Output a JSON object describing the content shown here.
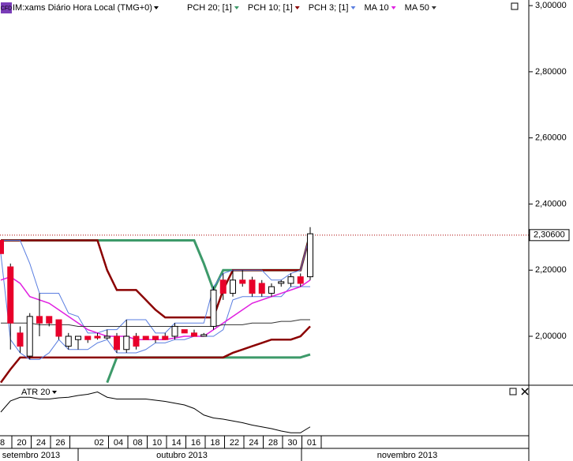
{
  "chart_data": [
    {
      "type": "candlestick",
      "title": "IM:xams Diário Hora Local (TMG+0)",
      "badge": "CFD",
      "categories": [
        "8",
        null,
        "20",
        null,
        "24",
        null,
        "26",
        null,
        null,
        null,
        "02",
        null,
        "04",
        null,
        "08",
        null,
        "10",
        null,
        "14",
        null,
        "16",
        null,
        "18",
        null,
        "22",
        null,
        "24",
        null,
        "28",
        null,
        "30",
        null,
        "01"
      ],
      "months": [
        "setembro 2013",
        "outubro 2013",
        "novembro 2013"
      ],
      "open": [
        2.29,
        2.21,
        2.01,
        1.94,
        2.06,
        2.06,
        2.05,
        1.97,
        1.99,
        2.0,
        2.0,
        1.995,
        2.0,
        1.96,
        2.0,
        2.0,
        2.0,
        2.0,
        2.0,
        2.02,
        2.01,
        2.0,
        2.03,
        2.17,
        2.13,
        2.17,
        2.17,
        2.16,
        2.13,
        2.16,
        2.16,
        2.18,
        2.18
      ],
      "high": [
        2.29,
        2.22,
        2.03,
        2.07,
        2.13,
        2.06,
        2.05,
        2.01,
        2.0,
        2.0,
        2.01,
        2.02,
        2.01,
        2.05,
        2.01,
        2.0,
        2.0,
        2.01,
        2.04,
        2.02,
        2.02,
        2.01,
        2.15,
        2.19,
        2.2,
        2.2,
        2.18,
        2.17,
        2.16,
        2.17,
        2.19,
        2.19,
        2.33
      ],
      "low": [
        2.25,
        1.96,
        1.95,
        1.93,
        2.0,
        2.03,
        1.99,
        1.96,
        1.96,
        1.98,
        1.99,
        1.99,
        1.95,
        1.95,
        1.96,
        1.99,
        1.98,
        1.99,
        1.99,
        2.01,
        2.0,
        2.0,
        2.02,
        2.11,
        2.12,
        2.15,
        2.12,
        2.12,
        2.12,
        2.15,
        2.15,
        2.15,
        2.17
      ],
      "close": [
        2.25,
        2.04,
        1.97,
        2.06,
        2.04,
        2.04,
        2.0,
        2.0,
        2.0,
        1.99,
        1.995,
        2.0,
        1.96,
        2.0,
        1.97,
        1.99,
        1.99,
        1.99,
        2.03,
        2.01,
        2.0,
        2.005,
        2.14,
        2.13,
        2.17,
        2.16,
        2.13,
        2.13,
        2.15,
        2.165,
        2.18,
        2.16,
        2.31
      ],
      "up_color": "#ffffff",
      "down_color": "#e8002a",
      "series": [
        {
          "name": "PCH 20; [1]",
          "color": "#3d9a6a",
          "upper": [
            2.29,
            2.29,
            2.29,
            2.29,
            2.29,
            2.29,
            2.29,
            2.29,
            2.29,
            2.29,
            2.29,
            2.29,
            2.29,
            2.29,
            2.29,
            2.29,
            2.29,
            2.29,
            2.29,
            2.29,
            2.29,
            2.22,
            2.14,
            2.2,
            2.2,
            2.2,
            2.2,
            2.2,
            2.2,
            2.2,
            2.2,
            2.2,
            2.31
          ],
          "lower": [
            null,
            null,
            null,
            null,
            null,
            null,
            null,
            null,
            null,
            null,
            null,
            1.86,
            1.936,
            1.936,
            1.936,
            1.936,
            1.936,
            1.936,
            1.936,
            1.936,
            1.936,
            1.936,
            1.936,
            1.936,
            1.936,
            1.936,
            1.936,
            1.936,
            1.936,
            1.936,
            1.936,
            1.936,
            1.945
          ]
        },
        {
          "name": "PCH 10; [1]",
          "color": "#8b0000",
          "upper": [
            2.29,
            2.29,
            2.29,
            2.29,
            2.29,
            2.29,
            2.29,
            2.29,
            2.29,
            2.29,
            2.29,
            2.2,
            2.14,
            2.14,
            2.14,
            2.11,
            2.08,
            2.057,
            2.057,
            2.057,
            2.057,
            2.057,
            2.057,
            2.14,
            2.2,
            2.2,
            2.2,
            2.2,
            2.2,
            2.2,
            2.2,
            2.2,
            2.31
          ],
          "lower": [
            1.86,
            1.9,
            1.936,
            1.936,
            1.936,
            1.936,
            1.936,
            1.936,
            1.936,
            1.936,
            1.936,
            1.936,
            1.936,
            1.936,
            1.936,
            1.936,
            1.936,
            1.936,
            1.936,
            1.936,
            1.936,
            1.936,
            1.936,
            1.936,
            1.95,
            1.96,
            1.97,
            1.98,
            1.99,
            1.99,
            1.99,
            2.0,
            2.03
          ]
        },
        {
          "name": "PCH 3; [1]",
          "color": "#5a7ee0",
          "upper": [
            2.29,
            2.29,
            2.29,
            2.22,
            2.13,
            2.13,
            2.13,
            2.07,
            2.06,
            2.01,
            2.01,
            2.02,
            2.02,
            2.05,
            2.05,
            2.05,
            2.01,
            2.01,
            2.04,
            2.04,
            2.04,
            2.04,
            2.15,
            2.19,
            2.2,
            2.2,
            2.2,
            2.2,
            2.17,
            2.17,
            2.19,
            2.2,
            2.31
          ],
          "lower": [
            2.25,
            1.99,
            1.95,
            1.93,
            1.93,
            1.95,
            1.99,
            1.96,
            1.96,
            1.96,
            1.98,
            1.99,
            1.95,
            1.95,
            1.95,
            1.96,
            1.98,
            1.98,
            1.99,
            1.99,
            2.0,
            2.0,
            2.0,
            2.02,
            2.11,
            2.12,
            2.12,
            2.12,
            2.12,
            2.12,
            2.15,
            2.15,
            2.15
          ]
        },
        {
          "name": "MA 10",
          "color": "#e020e0",
          "values": [
            2.17,
            2.18,
            2.16,
            2.12,
            2.11,
            2.1,
            2.08,
            2.06,
            2.04,
            2.02,
            2.01,
            2.0,
            2.0,
            2.0,
            1.99,
            1.99,
            1.99,
            1.99,
            1.995,
            2.0,
            2.0,
            2.0,
            2.02,
            2.04,
            2.06,
            2.08,
            2.1,
            2.11,
            2.12,
            2.13,
            2.14,
            2.15,
            2.17
          ]
        },
        {
          "name": "MA 50",
          "color": "#333333",
          "values": [
            2.04,
            2.04,
            2.04,
            2.04,
            2.035,
            2.035,
            2.035,
            2.035,
            2.03,
            2.03,
            2.03,
            2.03,
            2.03,
            2.03,
            2.03,
            2.03,
            2.03,
            2.03,
            2.03,
            2.03,
            2.03,
            2.03,
            2.03,
            2.035,
            2.035,
            2.035,
            2.04,
            2.04,
            2.04,
            2.045,
            2.045,
            2.05,
            2.05
          ]
        }
      ],
      "last_price": {
        "value": 2.306,
        "label": "2,30600"
      },
      "ylim": [
        1.852,
        3.017
      ],
      "yticks": [
        {
          "value": 3.0,
          "label": "3,00000"
        },
        {
          "value": 2.8,
          "label": "2,80000"
        },
        {
          "value": 2.6,
          "label": "2,60000"
        },
        {
          "value": 2.4,
          "label": "2,40000"
        },
        {
          "value": 2.2,
          "label": "2,20000"
        },
        {
          "value": 2.0,
          "label": "2,00000"
        }
      ]
    },
    {
      "type": "line",
      "title": "ATR 20",
      "color": "#000000",
      "values": [
        0.05,
        0.0594,
        0.0625,
        0.0625,
        0.061,
        0.061,
        0.062,
        0.0625,
        0.064,
        0.065,
        0.067,
        0.0625,
        0.061,
        0.061,
        0.061,
        0.061,
        0.06,
        0.059,
        0.0575,
        0.056,
        0.053,
        0.0475,
        0.045,
        0.044,
        0.0425,
        0.041,
        0.039,
        0.0375,
        0.036,
        0.034,
        0.0325,
        0.0325,
        0.0375
      ],
      "ylim": [
        0.03,
        0.07
      ]
    }
  ]
}
